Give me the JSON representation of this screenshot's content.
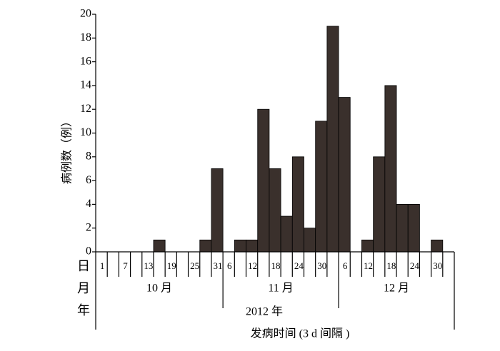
{
  "chart_data": {
    "type": "bar",
    "ylabel": "病例数（例）",
    "xlabel": "发病时间 (3 d 间隔 )",
    "year_label": "2012 年",
    "row_labels": [
      "日",
      "月",
      "年"
    ],
    "month_labels": [
      "10 月",
      "11 月",
      "12 月"
    ],
    "categories": [
      "1",
      null,
      "7",
      null,
      "13",
      null,
      "19",
      null,
      "25",
      null,
      "31",
      "6",
      null,
      "12",
      null,
      "18",
      null,
      "24",
      null,
      "30",
      null,
      "6",
      null,
      "12",
      null,
      "18",
      null,
      "24",
      null,
      "30",
      null
    ],
    "values": [
      0,
      0,
      0,
      0,
      0,
      1,
      0,
      0,
      0,
      1,
      7,
      0,
      1,
      1,
      12,
      7,
      3,
      8,
      2,
      11,
      19,
      13,
      0,
      1,
      8,
      14,
      4,
      4,
      0,
      1,
      0
    ],
    "color": "#3a302c",
    "ylim": [
      0,
      20
    ],
    "yticks": [
      0,
      2,
      4,
      6,
      8,
      10,
      12,
      14,
      16,
      18,
      20
    ]
  }
}
